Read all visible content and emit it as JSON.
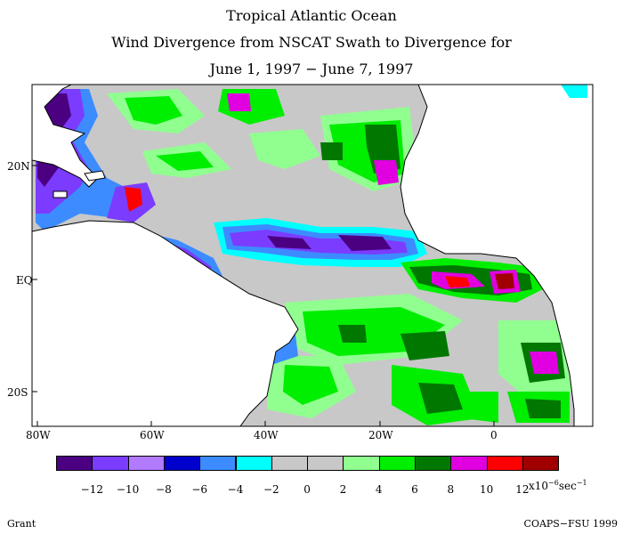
{
  "title": {
    "line1": "Tropical Atlantic Ocean",
    "line2": "Wind Divergence from NSCAT Swath to Divergence for",
    "line3": "June 1, 1997 − June 7, 1997"
  },
  "map": {
    "lat_labels": [
      "20N",
      "EQ",
      "20S"
    ],
    "lon_labels": [
      "80W",
      "60W",
      "40W",
      "20W",
      "0"
    ],
    "land_color": "#ffffff",
    "ocean_base_color": "#c8c8c8"
  },
  "legend": {
    "colors": [
      "#4b0082",
      "#7b3cff",
      "#b27aff",
      "#0000cd",
      "#3c8cff",
      "#00ffff",
      "#c8c8c8",
      "#c8c8c8",
      "#90ff90",
      "#00ee00",
      "#007800",
      "#e000e0",
      "#ff0000",
      "#a00000"
    ],
    "tick_labels": [
      "−12",
      "−10",
      "−8",
      "−6",
      "−4",
      "−2",
      "0",
      "2",
      "4",
      "6",
      "8",
      "10",
      "12"
    ],
    "unit_prefix": "x10",
    "unit_exp1": "−6",
    "unit_mid": "sec",
    "unit_exp2": "−1"
  },
  "footer": {
    "left": "Grant",
    "right": "COAPS−FSU 1999"
  }
}
